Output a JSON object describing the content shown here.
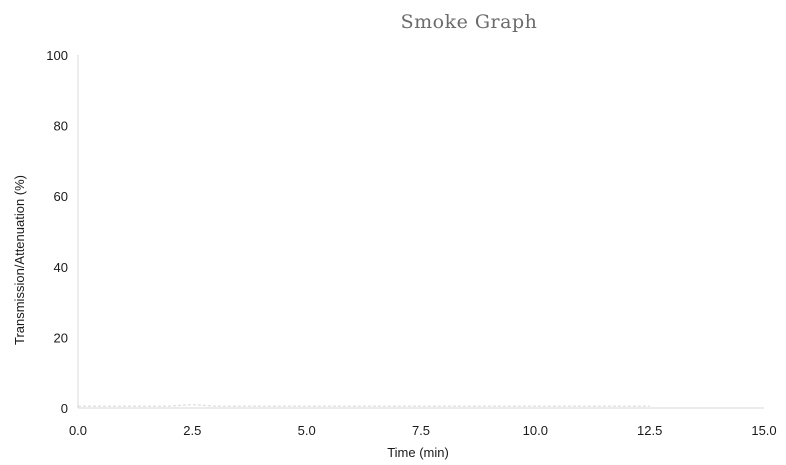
{
  "chart_data": {
    "type": "line",
    "title": "Smoke Graph",
    "xlabel": "Time (min)",
    "ylabel": "Transmission/Attenuation (%)",
    "xlim": [
      0,
      15
    ],
    "ylim": [
      0,
      100
    ],
    "x_ticks": [
      "0.0",
      "2.5",
      "5.0",
      "7.5",
      "10.0",
      "12.5",
      "15.0"
    ],
    "y_ticks": [
      "0",
      "20",
      "40",
      "60",
      "80",
      "100"
    ],
    "grid": false,
    "legend": "none",
    "series": [
      {
        "color": "#c8c8c8",
        "x": [
          0,
          1,
          2,
          2.5,
          3,
          4,
          5,
          6,
          7,
          8,
          9,
          10,
          11,
          12,
          12.5
        ],
        "y": [
          0.5,
          0.5,
          0.5,
          1,
          0.5,
          0.5,
          0.5,
          0.5,
          0.5,
          0.5,
          0.5,
          0.5,
          0.5,
          0.5,
          0.5
        ]
      }
    ]
  }
}
